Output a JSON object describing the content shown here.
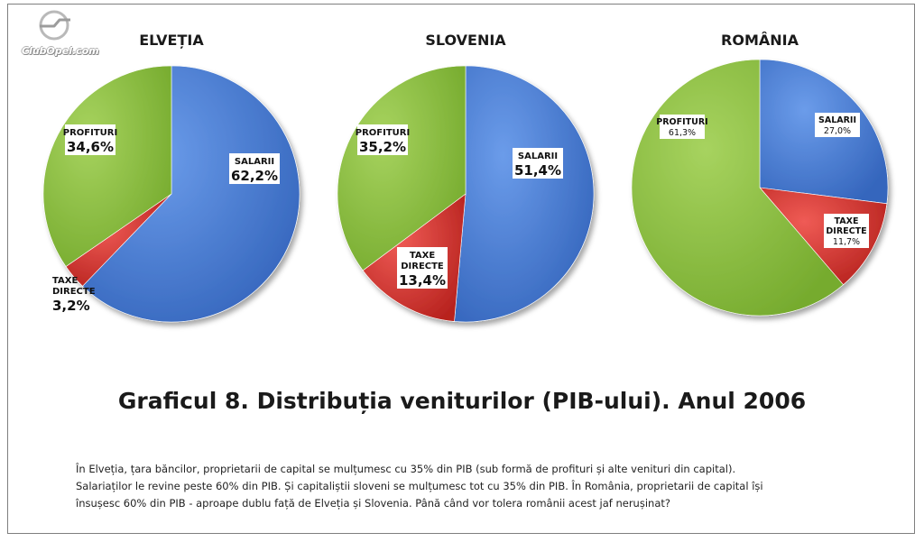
{
  "watermark": {
    "text": "ClubOpel.com",
    "icon": "opel-logo-icon"
  },
  "caption": "Graficul 8. Distribuția veniturilor (PIB-ului). Anul 2006",
  "paragraph": {
    "line1": "În Elveția, țara băncilor, proprietarii de capital se mulțumesc cu 35% din PIB (sub formă de profituri și alte venituri din capital).",
    "line2": "Salariaților le revine peste 60% din PIB. Și capitaliștii sloveni se mulțumesc tot cu 35% din PIB. În România, proprietarii de capital își",
    "line3": "însușesc 60% din PIB - aproape dublu față de Elveția și Slovenia. Până când vor tolera românii acest jaf nerușinat?"
  },
  "colors": {
    "salarii": "#4a7fd4",
    "taxe": "#d93a36",
    "profituri": "#8dc242"
  },
  "chart_data": [
    {
      "type": "pie",
      "title": "ELVEȚIA",
      "slices": [
        {
          "label": "SALARII",
          "value": 62.2,
          "text": "62,2%",
          "key": "salarii"
        },
        {
          "label": "TAXE DIRECTE",
          "value": 3.2,
          "text": "3,2%",
          "key": "taxe"
        },
        {
          "label": "PROFITURI",
          "value": 34.6,
          "text": "34,6%",
          "key": "profituri"
        }
      ]
    },
    {
      "type": "pie",
      "title": "SLOVENIA",
      "slices": [
        {
          "label": "SALARII",
          "value": 51.4,
          "text": "51,4%",
          "key": "salarii"
        },
        {
          "label": "TAXE DIRECTE",
          "value": 13.4,
          "text": "13,4%",
          "key": "taxe"
        },
        {
          "label": "PROFITURI",
          "value": 35.2,
          "text": "35,2%",
          "key": "profituri"
        }
      ]
    },
    {
      "type": "pie",
      "title": "ROMÂNIA",
      "slices": [
        {
          "label": "SALARII",
          "value": 27.0,
          "text": "27,0%",
          "key": "salarii"
        },
        {
          "label": "TAXE DIRECTE",
          "value": 11.7,
          "text": "11,7%",
          "key": "taxe"
        },
        {
          "label": "PROFITURI",
          "value": 61.3,
          "text": "61,3%",
          "key": "profituri"
        }
      ]
    }
  ]
}
